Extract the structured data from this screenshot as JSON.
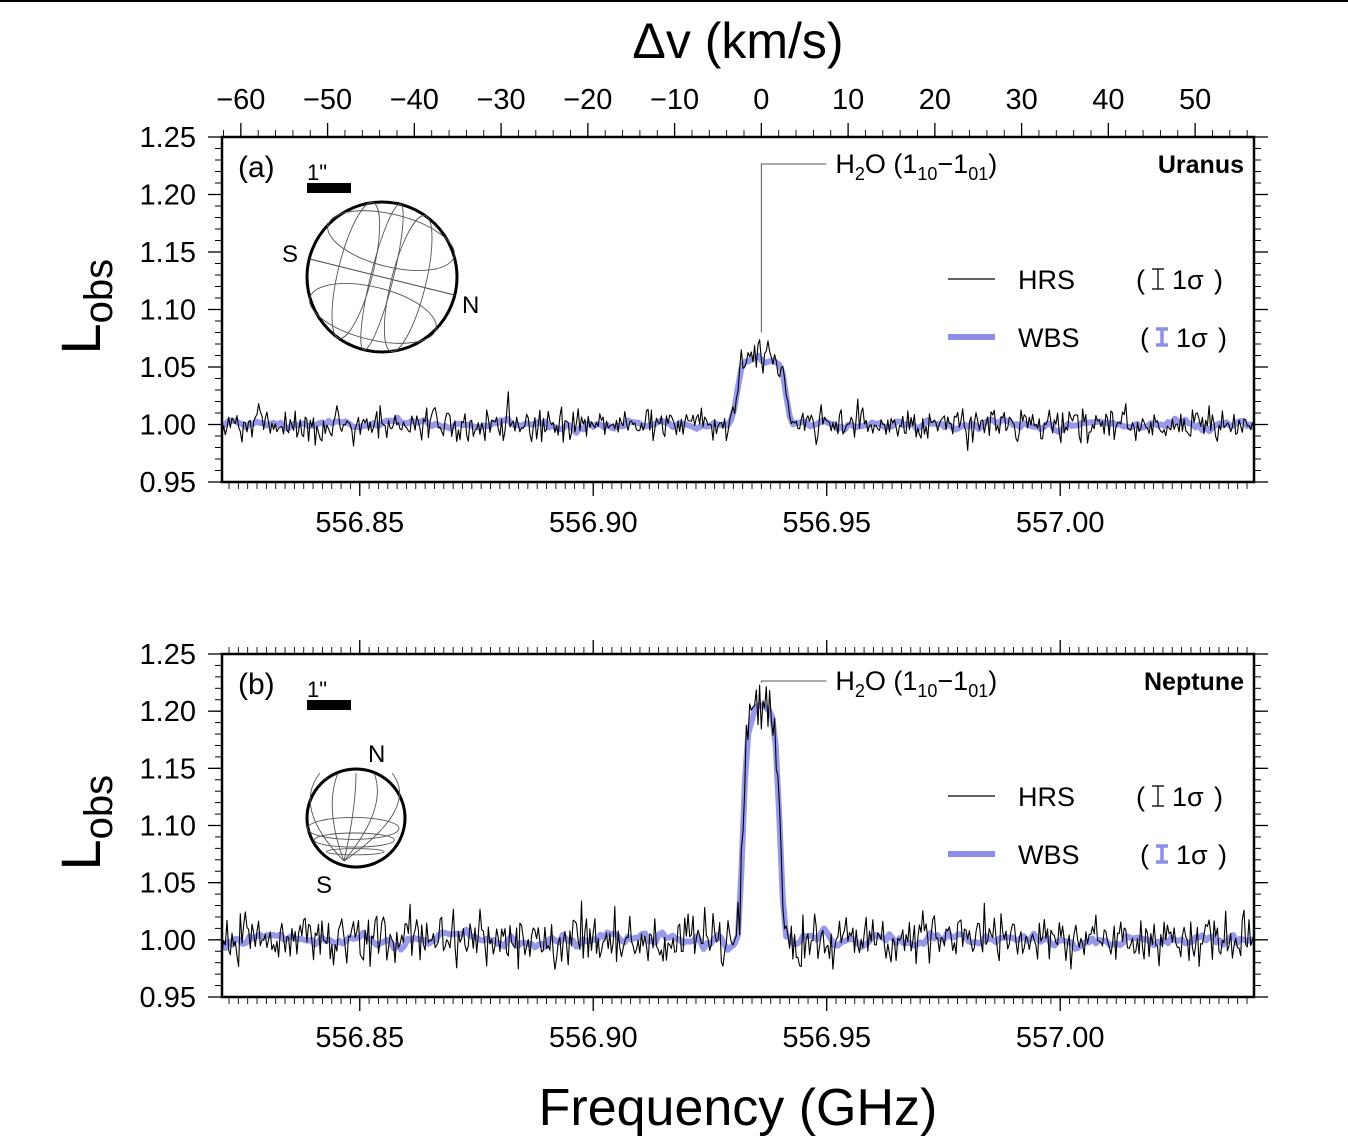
{
  "chart_data": [
    {
      "type": "line",
      "panel_label": "(a)",
      "planet": "Uranus",
      "xlabel": "Frequency (GHz)",
      "ylabel": "L",
      "ylabel_sub": "obs",
      "top_axis_label": "Δv (km/s)",
      "xlim": [
        556.8205,
        557.0415
      ],
      "ylim": [
        0.95,
        1.25
      ],
      "x_ticks": [
        "556.85",
        "556.90",
        "556.95",
        "557.00"
      ],
      "x_tick_values": [
        556.85,
        556.9,
        556.95,
        557.0
      ],
      "y_ticks": [
        "0.95",
        "1.00",
        "1.05",
        "1.10",
        "1.15",
        "1.20",
        "1.25"
      ],
      "y_tick_values": [
        0.95,
        1.0,
        1.05,
        1.1,
        1.15,
        1.2,
        1.25
      ],
      "top_ticks": [
        "−60",
        "−50",
        "−40",
        "−30",
        "−20",
        "−10",
        "0",
        "10",
        "20",
        "30",
        "40",
        "50"
      ],
      "top_tick_values": [
        -60,
        -50,
        -40,
        -30,
        -20,
        -10,
        0,
        10,
        20,
        30,
        40,
        50
      ],
      "line_center_ghz": 556.936,
      "annotation": {
        "species": "H",
        "sub1": "2",
        "mid": "O (1",
        "sub2": "10",
        "dash": "−1",
        "sub3": "01",
        "end": ")",
        "x_ghz": 556.936,
        "y_tip": 1.08
      },
      "inset": {
        "scale_label": "1\"",
        "pole1": "S",
        "pole2": "N"
      },
      "legend": [
        {
          "name": "HRS",
          "err": "1σ",
          "color": "#000000"
        },
        {
          "name": "WBS",
          "err": "1σ",
          "color": "#8d8ee8"
        }
      ],
      "series": [
        {
          "name": "HRS",
          "color": "#000000",
          "baseline": 1.0,
          "peak": 1.062,
          "center": 556.936,
          "width": 0.0055,
          "noise": 0.0075
        },
        {
          "name": "WBS",
          "color": "#8d8ee8",
          "baseline": 1.0,
          "peak": 1.06,
          "center": 556.936,
          "width": 0.0055,
          "noise": 0.004
        }
      ]
    },
    {
      "type": "line",
      "panel_label": "(b)",
      "planet": "Neptune",
      "xlabel": "Frequency (GHz)",
      "ylabel": "L",
      "ylabel_sub": "obs",
      "xlim": [
        556.8205,
        557.0415
      ],
      "ylim": [
        0.95,
        1.25
      ],
      "x_ticks": [
        "556.85",
        "556.90",
        "556.95",
        "557.00"
      ],
      "x_tick_values": [
        556.85,
        556.9,
        556.95,
        557.0
      ],
      "y_ticks": [
        "0.95",
        "1.00",
        "1.05",
        "1.10",
        "1.15",
        "1.20",
        "1.25"
      ],
      "y_tick_values": [
        0.95,
        1.0,
        1.05,
        1.1,
        1.15,
        1.2,
        1.25
      ],
      "line_center_ghz": 556.936,
      "annotation": {
        "species": "H",
        "sub1": "2",
        "mid": "O (1",
        "sub2": "10",
        "dash": "−1",
        "sub3": "01",
        "end": ")",
        "x_ghz": 556.936,
        "y_tip": 1.225
      },
      "inset": {
        "scale_label": "1\"",
        "pole1": "N",
        "pole2": "S"
      },
      "legend": [
        {
          "name": "HRS",
          "err": "1σ",
          "color": "#000000"
        },
        {
          "name": "WBS",
          "err": "1σ",
          "color": "#8d8ee8"
        }
      ],
      "series": [
        {
          "name": "HRS",
          "color": "#000000",
          "baseline": 1.0,
          "peak": 1.205,
          "center": 556.936,
          "width": 0.0042,
          "noise": 0.011
        },
        {
          "name": "WBS",
          "color": "#8d8ee8",
          "baseline": 1.0,
          "peak": 1.2,
          "center": 556.936,
          "width": 0.0042,
          "noise": 0.006
        }
      ]
    }
  ]
}
